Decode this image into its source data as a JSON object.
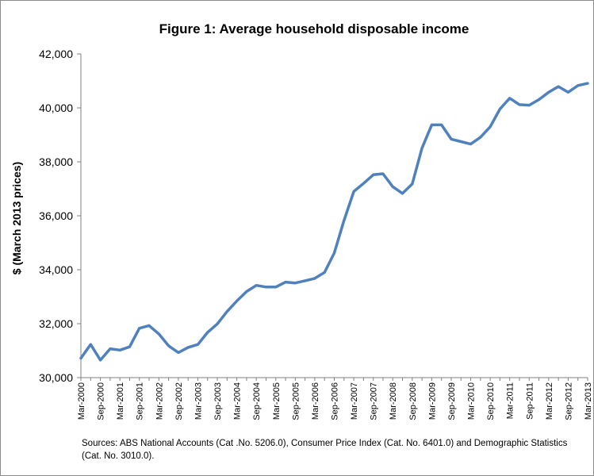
{
  "chart_data": {
    "type": "line",
    "title": "Figure 1: Average household disposable income",
    "xlabel": "",
    "ylabel": "$ (March 2013 prices)",
    "ylim": [
      30000,
      42000
    ],
    "yticks": [
      30000,
      32000,
      34000,
      36000,
      38000,
      40000,
      42000
    ],
    "ytick_labels": [
      "30,000",
      "32,000",
      "34,000",
      "36,000",
      "38,000",
      "40,000",
      "42,000"
    ],
    "grid": false,
    "legend": "none",
    "line_color": "#4f81bd",
    "x": [
      "Mar-2000",
      "Jun-2000",
      "Sep-2000",
      "Dec-2000",
      "Mar-2001",
      "Jun-2001",
      "Sep-2001",
      "Dec-2001",
      "Mar-2002",
      "Jun-2002",
      "Sep-2002",
      "Dec-2002",
      "Mar-2003",
      "Jun-2003",
      "Sep-2003",
      "Dec-2003",
      "Mar-2004",
      "Jun-2004",
      "Sep-2004",
      "Dec-2004",
      "Mar-2005",
      "Jun-2005",
      "Sep-2005",
      "Dec-2005",
      "Mar-2006",
      "Jun-2006",
      "Sep-2006",
      "Dec-2006",
      "Mar-2007",
      "Jun-2007",
      "Sep-2007",
      "Dec-2007",
      "Mar-2008",
      "Jun-2008",
      "Sep-2008",
      "Dec-2008",
      "Mar-2009",
      "Jun-2009",
      "Sep-2009",
      "Dec-2009",
      "Mar-2010",
      "Jun-2010",
      "Sep-2010",
      "Dec-2010",
      "Mar-2011",
      "Jun-2011",
      "Sep-2011",
      "Dec-2011",
      "Mar-2012",
      "Jun-2012",
      "Sep-2012",
      "Dec-2012",
      "Mar-2013"
    ],
    "xtick_labels": [
      "Mar-2000",
      "Sep-2000",
      "Mar-2001",
      "Sep-2001",
      "Mar-2002",
      "Sep-2002",
      "Mar-2003",
      "Sep-2003",
      "Mar-2004",
      "Sep-2004",
      "Mar-2005",
      "Sep-2005",
      "Mar-2006",
      "Sep-2006",
      "Mar-2007",
      "Sep-2007",
      "Mar-2008",
      "Sep-2008",
      "Mar-2009",
      "Sep-2009",
      "Mar-2010",
      "Sep-2010",
      "Mar-2011",
      "Sep-2011",
      "Mar-2012",
      "Sep-2012",
      "Mar-2013"
    ],
    "series": [
      {
        "values": [
          30720,
          31230,
          30650,
          31070,
          31020,
          31140,
          31830,
          31930,
          31620,
          31180,
          30930,
          31120,
          31230,
          31680,
          31990,
          32450,
          32840,
          33190,
          33420,
          33360,
          33360,
          33540,
          33510,
          33590,
          33680,
          33900,
          34620,
          35830,
          36900,
          37200,
          37520,
          37560,
          37080,
          36830,
          37180,
          38510,
          39370,
          39370,
          38840,
          38750,
          38660,
          38910,
          39300,
          39960,
          40360,
          40120,
          40100,
          40310,
          40580,
          40790,
          40580,
          40830,
          40910
        ]
      }
    ],
    "source_note": "Sources: ABS National Accounts (Cat .No. 5206.0), Consumer Price Index (Cat. No. 6401.0) and Demographic Statistics (Cat. No. 3010.0)."
  }
}
